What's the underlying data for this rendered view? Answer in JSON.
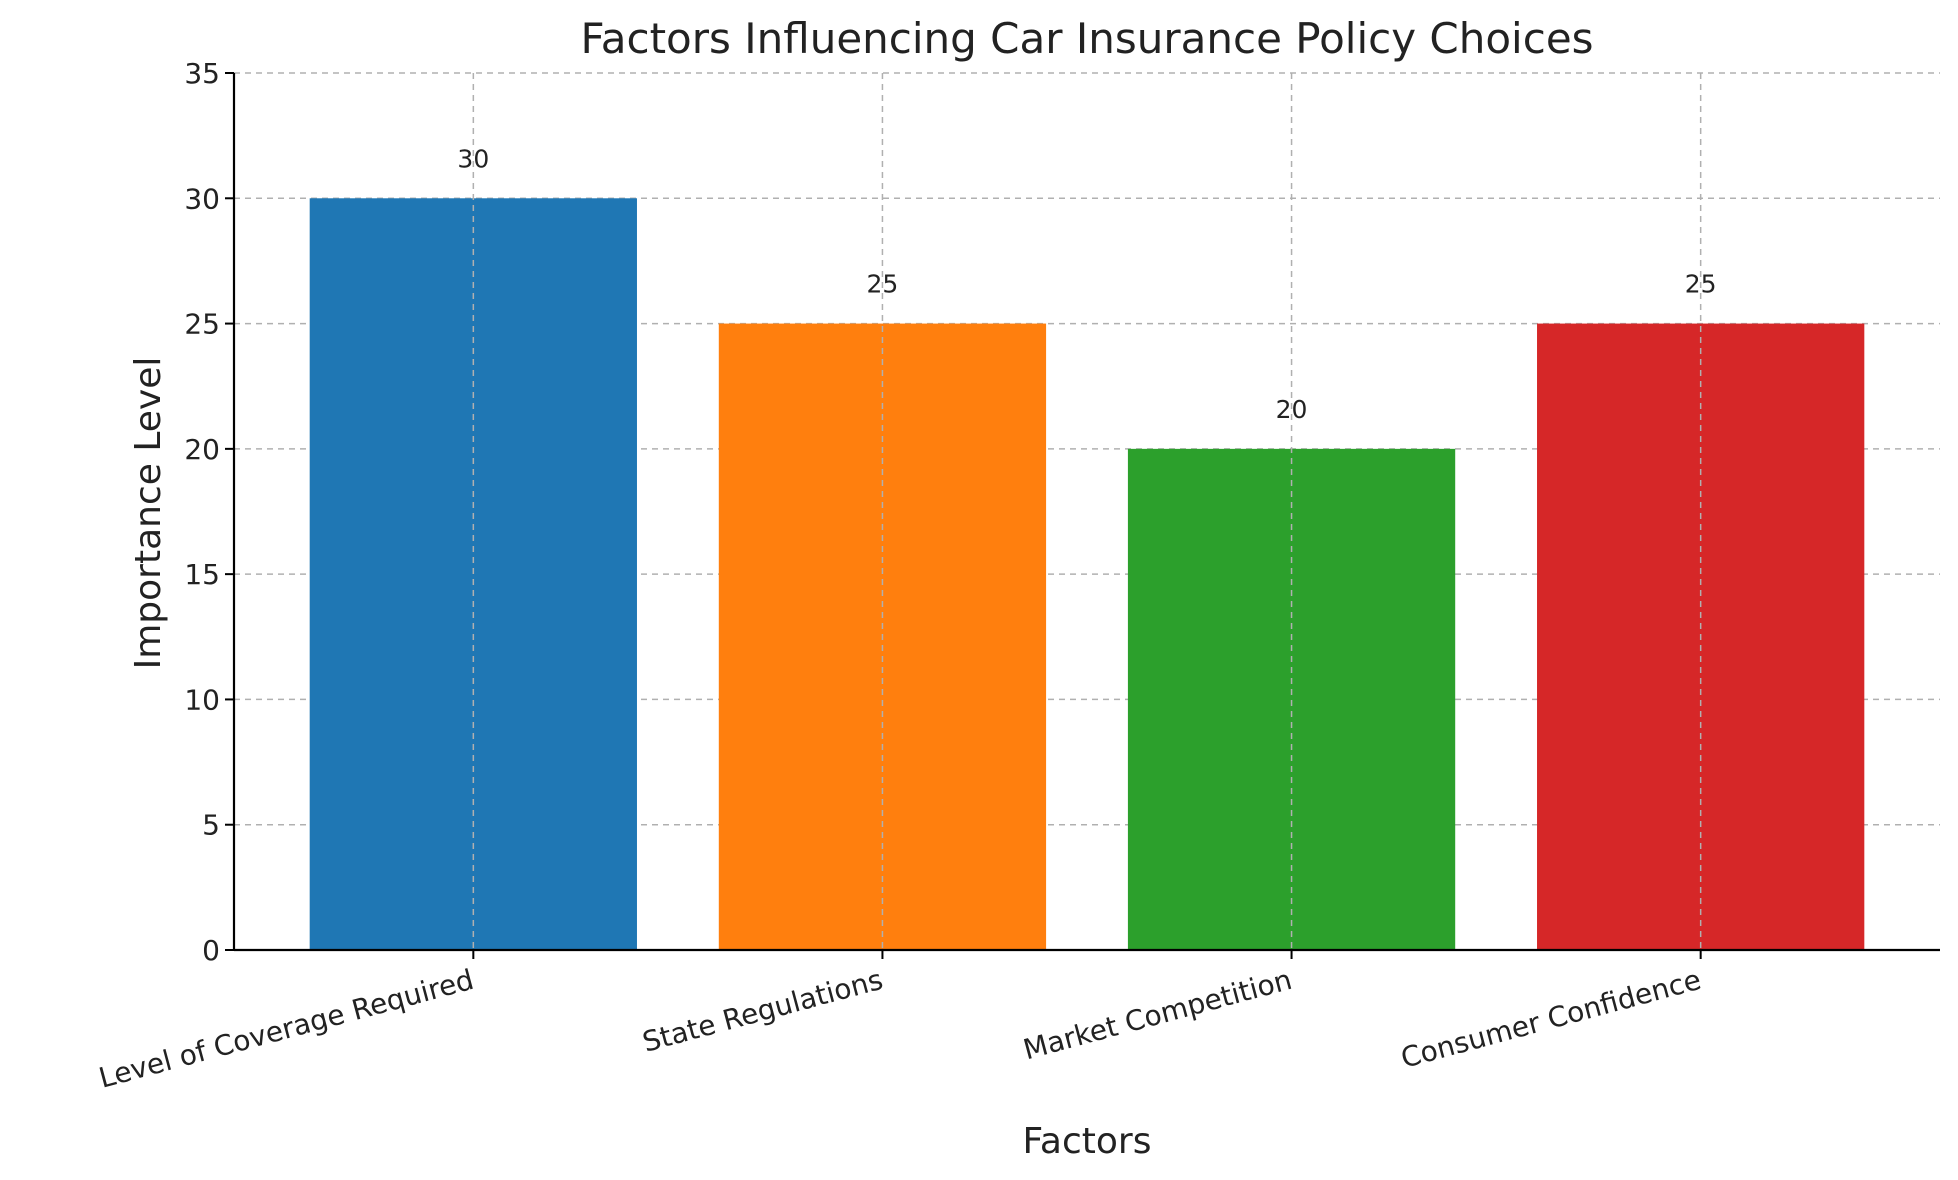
{
  "chart_data": {
    "type": "bar",
    "title": "Factors Influencing Car Insurance Policy Choices",
    "xlabel": "Factors",
    "ylabel": "Importance Level",
    "categories": [
      "Level of Coverage Required",
      "State Regulations",
      "Market Competition",
      "Consumer Confidence"
    ],
    "values": [
      30,
      25,
      20,
      25
    ],
    "colors": [
      "#1f77b4",
      "#ff7f0e",
      "#2ca02c",
      "#d62728"
    ],
    "ylim": [
      0,
      35
    ],
    "yticks": [
      0,
      5,
      10,
      15,
      20,
      25,
      30,
      35
    ],
    "data_labels": [
      "30",
      "25",
      "20",
      "25"
    ],
    "grid": true,
    "grid_style": "dashed"
  }
}
